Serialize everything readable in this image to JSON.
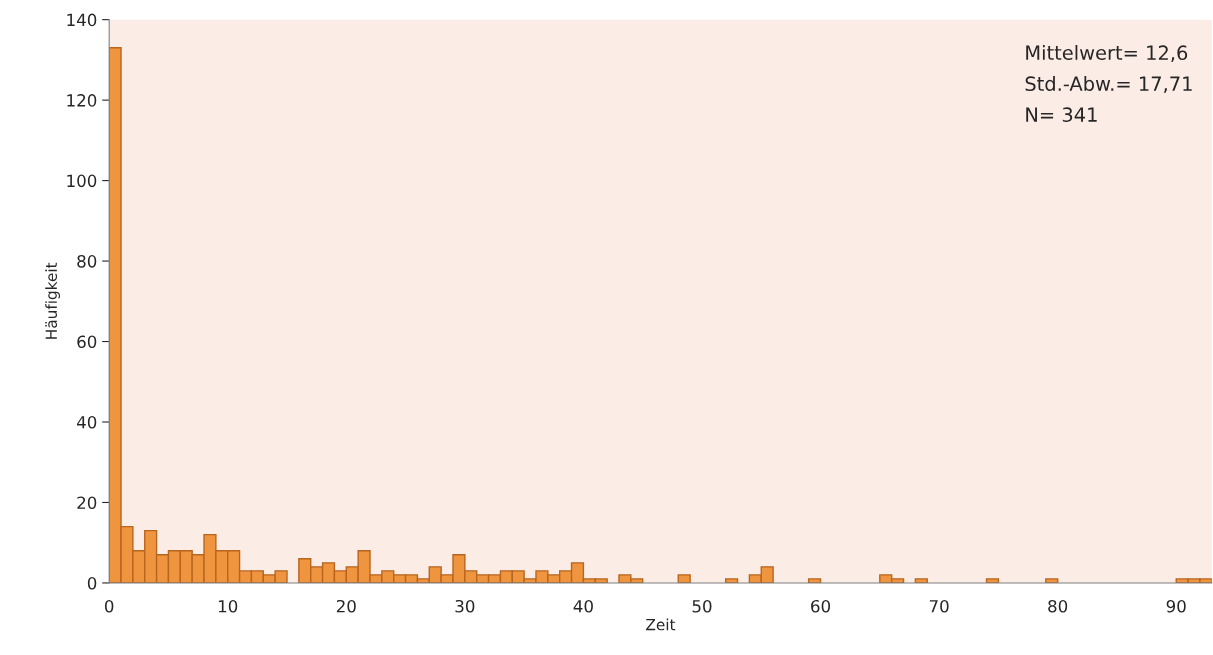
{
  "chart_data": {
    "type": "histogram",
    "xlabel": "Zeit",
    "ylabel": "Häufigkeit",
    "bins": [
      0,
      1,
      2,
      3,
      4,
      5,
      6,
      7,
      8,
      9,
      10,
      11,
      12,
      13,
      14,
      15,
      16,
      17,
      18,
      19,
      20,
      21,
      22,
      23,
      24,
      25,
      26,
      27,
      28,
      29,
      30,
      31,
      32,
      33,
      34,
      35,
      36,
      37,
      38,
      39,
      40,
      41,
      42,
      43,
      44,
      45,
      46,
      47,
      48,
      49,
      50,
      51,
      52,
      53,
      54,
      55,
      56,
      57,
      58,
      59,
      60,
      61,
      62,
      63,
      64,
      65,
      66,
      67,
      68,
      69,
      70,
      71,
      72,
      73,
      74,
      75,
      76,
      77,
      78,
      79,
      80,
      81,
      82,
      83,
      84,
      85,
      86,
      87,
      88,
      89,
      90,
      91,
      92,
      93
    ],
    "values": [
      133,
      14,
      8,
      13,
      7,
      8,
      8,
      7,
      12,
      8,
      8,
      3,
      3,
      2,
      3,
      0,
      6,
      4,
      5,
      3,
      4,
      8,
      2,
      3,
      2,
      2,
      1,
      4,
      2,
      7,
      3,
      2,
      2,
      3,
      3,
      1,
      3,
      2,
      3,
      5,
      1,
      1,
      0,
      2,
      1,
      0,
      0,
      0,
      2,
      0,
      0,
      0,
      1,
      0,
      2,
      4,
      0,
      0,
      0,
      1,
      0,
      0,
      0,
      0,
      0,
      2,
      1,
      0,
      1,
      0,
      0,
      0,
      0,
      0,
      1,
      0,
      0,
      0,
      0,
      1,
      0,
      0,
      0,
      0,
      0,
      0,
      0,
      0,
      0,
      0,
      1,
      1,
      1
    ],
    "color": "#f0953f",
    "xlim": [
      0,
      93
    ],
    "ylim": [
      0,
      140
    ],
    "xticks": [
      0,
      10,
      20,
      30,
      40,
      50,
      60,
      70,
      80,
      90
    ],
    "yticks": [
      0,
      20,
      40,
      60,
      80,
      100,
      120,
      140
    ],
    "grid": false,
    "annotations": [
      "Mittelwert= 12,6",
      "Std.-Abw.= 17,71",
      "N= 341"
    ]
  }
}
